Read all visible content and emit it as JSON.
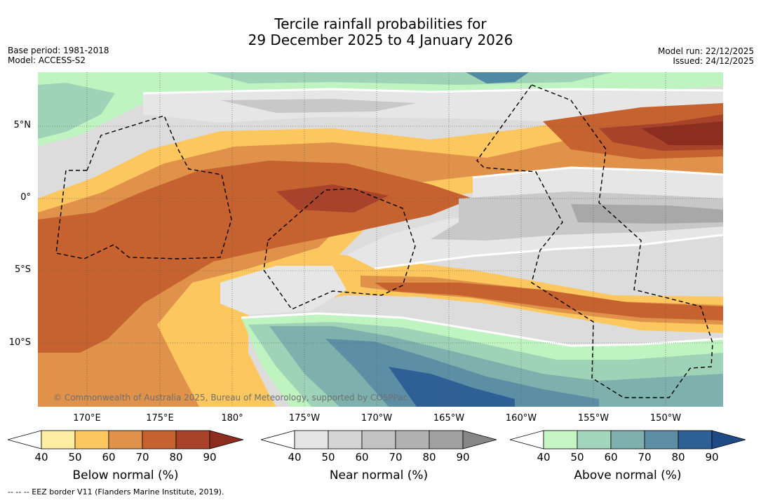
{
  "title": {
    "line1": "Tercile rainfall probabilities for",
    "line2": "29 December 2025 to 4 January 2026"
  },
  "meta": {
    "base_period": "Base period: 1981-2018",
    "model": "Model: ACCESS-S2",
    "model_run": "Model run: 22/12/2025",
    "issued": "Issued: 24/12/2025"
  },
  "map": {
    "lat_labels": [
      "5°N",
      "0°",
      "5°S",
      "10°S"
    ],
    "lon_labels": [
      "170°E",
      "175°E",
      "180°",
      "175°W",
      "170°W",
      "165°W",
      "160°W",
      "155°W",
      "150°W"
    ],
    "copyright": "© Commonwealth of Australia 2025, Bureau of Meteorology, supported by COSPPac"
  },
  "colorbars": [
    {
      "label": "Below normal (%)",
      "ticks": [
        "40",
        "50",
        "60",
        "70",
        "80",
        "90"
      ],
      "colors": [
        "#ffffff",
        "#fdeda2",
        "#fdc75f",
        "#e0914a",
        "#c5622f",
        "#a9422a",
        "#8c2d1f"
      ]
    },
    {
      "label": "Near normal (%)",
      "ticks": [
        "40",
        "50",
        "60",
        "70",
        "80",
        "90"
      ],
      "colors": [
        "#ffffff",
        "#e4e4e4",
        "#d4d4d4",
        "#c3c3c3",
        "#b1b1b1",
        "#a0a0a0",
        "#868686"
      ]
    },
    {
      "label": "Above normal (%)",
      "ticks": [
        "40",
        "50",
        "60",
        "70",
        "80",
        "90"
      ],
      "colors": [
        "#ffffff",
        "#c6f5c6",
        "#a2d6bb",
        "#7eb1ad",
        "#5c8ea5",
        "#2e6095",
        "#1f4a85"
      ]
    }
  ],
  "footer": "--  --  -- EEZ border V11 (Flanders Marine Institute, 2019)."
}
